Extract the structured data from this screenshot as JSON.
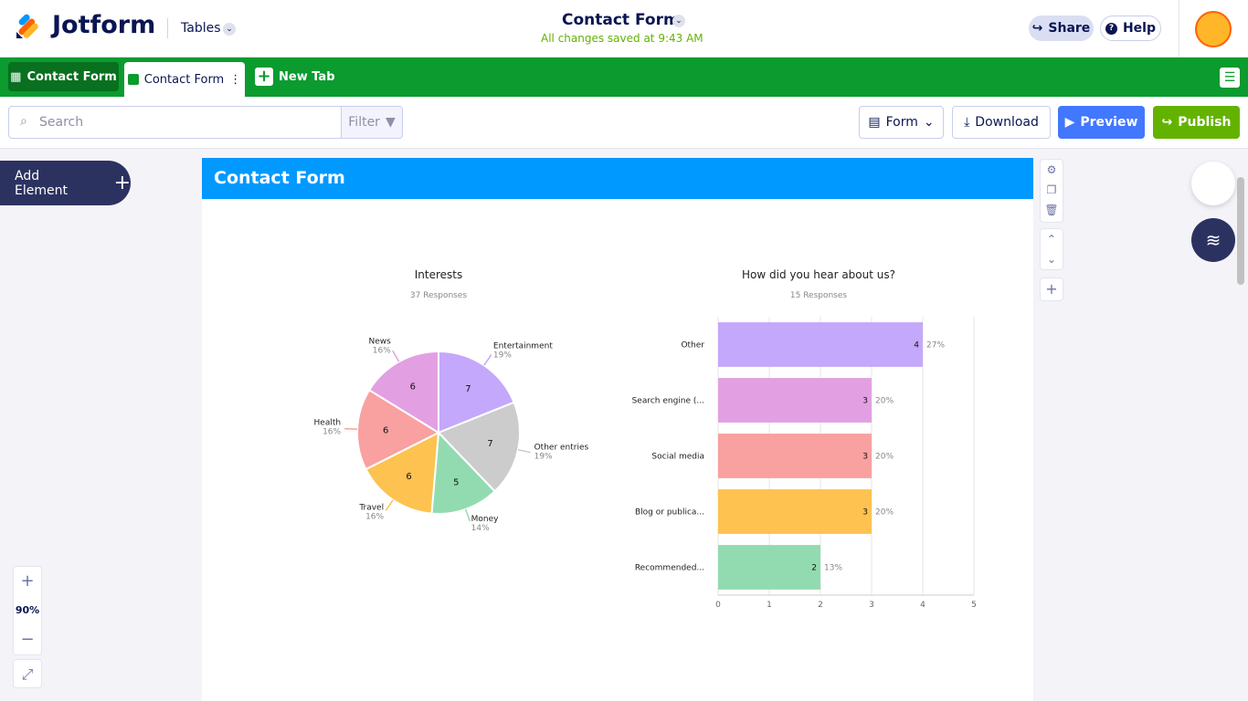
{
  "header": {
    "logo": "Jotform",
    "tables_menu": "Tables",
    "form_title": "Contact Form",
    "save_status": "All changes saved at 9:43 AM",
    "share": "Share",
    "help": "Help"
  },
  "tabs": {
    "items": [
      "Contact Form",
      "Contact Form"
    ],
    "new_tab": "New Tab"
  },
  "toolbar": {
    "search_placeholder": "Search",
    "filter": "Filter",
    "form": "Form",
    "download": "Download",
    "preview": "Preview",
    "publish": "Publish"
  },
  "sidebar": {
    "add_element": "Add Element",
    "zoom": "90%"
  },
  "report": {
    "title": "Contact Form",
    "charts": [
      {
        "type": "pie",
        "title": "Interests",
        "subtitle": "37 Responses",
        "categories": [
          "Entertainment",
          "Other entries",
          "Money",
          "Travel",
          "Health",
          "News"
        ],
        "values": [
          7,
          7,
          5,
          6,
          6,
          6
        ],
        "percent_labels": [
          "19%",
          "19%",
          "14%",
          "16%",
          "16%",
          "16%"
        ],
        "colors": [
          "#c4a8fb",
          "#cccccc",
          "#92dbb0",
          "#fdc250",
          "#f9a0a0",
          "#e2a0e2"
        ]
      },
      {
        "type": "bar",
        "orientation": "horizontal",
        "title": "How did you hear about us?",
        "subtitle": "15 Responses",
        "categories": [
          "Other",
          "Search engine (...",
          "Social media",
          "Blog or publica...",
          "Recommended..."
        ],
        "values": [
          4,
          3,
          3,
          3,
          2
        ],
        "percent_labels": [
          "27%",
          "20%",
          "20%",
          "20%",
          "13%"
        ],
        "colors": [
          "#c4a8fb",
          "#e2a0e2",
          "#f9a0a0",
          "#fdc250",
          "#92dbb0"
        ],
        "xlim": [
          0,
          5
        ],
        "xticks": [
          0,
          1,
          2,
          3,
          4,
          5
        ],
        "grid": true
      }
    ]
  }
}
